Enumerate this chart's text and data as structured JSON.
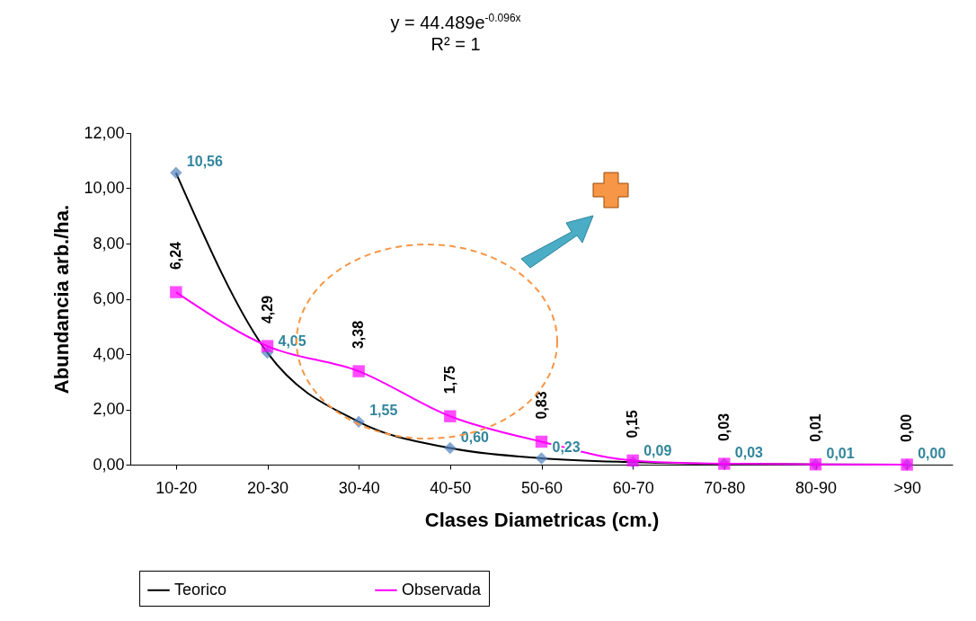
{
  "chart_data": {
    "type": "line",
    "xlabel": "Clases Diametricas (cm.)",
    "ylabel": "Abundancia arb./ha.",
    "annotations": [
      "y = 44.489e$^{-0.096x}$",
      "R² = 1"
    ],
    "categories": [
      "10-20",
      "20-30",
      "30-40",
      "40-50",
      "50-60",
      "60-70",
      "70-80",
      "80-90",
      ">90"
    ],
    "series": [
      {
        "name": "Teorico",
        "color": "#000000",
        "marker": "diamond",
        "colors": [
          "#4f81bd",
          "#4f81bd",
          "#4f81bd",
          "#4f81bd",
          "#4f81bd",
          "#4f81bd",
          "#4f81bd",
          "#4f81bd",
          "#4f81bd"
        ],
        "values": [
          10.56,
          4.05,
          1.55,
          0.6,
          0.23,
          0.09,
          0.03,
          0.01,
          0.0
        ],
        "value_labels": [
          "10,56",
          "4,05",
          "1,55",
          "0,60",
          "0,23",
          "0,09",
          "0,03",
          "0,01",
          "0,00"
        ]
      },
      {
        "name": "Observada",
        "color": "#ff00ff",
        "marker": "square",
        "values": [
          6.24,
          4.29,
          3.38,
          1.75,
          0.83,
          0.15,
          0.03,
          0.01,
          0.0
        ],
        "value_labels": [
          "6,24",
          "4,29",
          "3,38",
          "1,75",
          "0,83",
          "0,15",
          "0,03",
          "0,01",
          "0,00"
        ]
      }
    ],
    "ylim": [
      0,
      12
    ],
    "yticks": [
      {
        "value": 0,
        "label": "0,00"
      },
      {
        "value": 2,
        "label": "2,00"
      },
      {
        "value": 4,
        "label": "4,00"
      },
      {
        "value": 6,
        "label": "6,00"
      },
      {
        "value": 8,
        "label": "8,00"
      },
      {
        "value": 10,
        "label": "10,00"
      },
      {
        "value": 12,
        "label": "12,00"
      }
    ],
    "grid": false,
    "legend": "bottom"
  }
}
